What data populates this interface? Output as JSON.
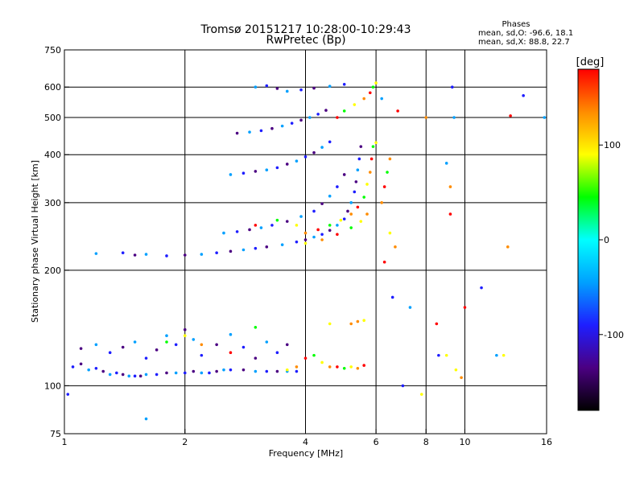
{
  "chart_data": {
    "type": "scatter",
    "title": "Tromsø 20151217 10:28:00-10:29:43",
    "subtitle": "RwPretec (Bp)",
    "stats": {
      "heading": "Phases",
      "line1": "mean, sd,O: -96.6, 18.1",
      "line2": "mean, sd,X:  88.8, 22.7"
    },
    "xlabel": "Frequency [MHz]",
    "ylabel": "Stationary phase Virtual Height [km]",
    "x_scale": "log",
    "y_scale": "log",
    "xlim": [
      1,
      16
    ],
    "ylim": [
      75,
      750
    ],
    "x_ticks": [
      {
        "value": 1,
        "label": "1"
      },
      {
        "value": 2,
        "label": "2"
      },
      {
        "value": 4,
        "label": "4"
      },
      {
        "value": 6,
        "label": "6"
      },
      {
        "value": 8,
        "label": "8"
      },
      {
        "value": 10,
        "label": "10"
      },
      {
        "value": 16,
        "label": "16"
      }
    ],
    "y_ticks": [
      {
        "value": 75,
        "label": "75"
      },
      {
        "value": 100,
        "label": "100"
      },
      {
        "value": 200,
        "label": "200"
      },
      {
        "value": 300,
        "label": "300"
      },
      {
        "value": 400,
        "label": "400"
      },
      {
        "value": 500,
        "label": "500"
      },
      {
        "value": 600,
        "label": "600"
      },
      {
        "value": 750,
        "label": "750"
      }
    ],
    "x_gridlines": [
      2,
      4,
      6,
      8,
      10
    ],
    "y_gridlines": [
      100,
      200,
      300,
      400,
      500,
      600
    ],
    "grid": true,
    "colorbar": {
      "label": "[deg]",
      "range": [
        -180,
        180
      ],
      "ticks": [
        {
          "value": 100,
          "label": "100"
        },
        {
          "value": 0,
          "label": "0"
        },
        {
          "value": -100,
          "label": "-100"
        }
      ],
      "colors": [
        "#000000",
        "#4b0082",
        "#1e1eff",
        "#00a0ff",
        "#00ffff",
        "#00ff00",
        "#ffff00",
        "#ff8c00",
        "#ff0000"
      ]
    },
    "series": [
      {
        "mode": "O",
        "points": [
          [
            1.05,
            112
          ],
          [
            1.1,
            114
          ],
          [
            1.15,
            110
          ],
          [
            1.2,
            111
          ],
          [
            1.25,
            109
          ],
          [
            1.3,
            107
          ],
          [
            1.35,
            108
          ],
          [
            1.4,
            107
          ],
          [
            1.45,
            106
          ],
          [
            1.5,
            106
          ],
          [
            1.55,
            106
          ],
          [
            1.6,
            107
          ],
          [
            1.7,
            107
          ],
          [
            1.8,
            108
          ],
          [
            1.9,
            108
          ],
          [
            2.0,
            108
          ],
          [
            2.1,
            109
          ],
          [
            2.2,
            108
          ],
          [
            2.3,
            108
          ],
          [
            2.4,
            109
          ],
          [
            2.5,
            110
          ],
          [
            2.6,
            110
          ],
          [
            2.8,
            110
          ],
          [
            3.0,
            109
          ],
          [
            3.2,
            109
          ],
          [
            3.4,
            109
          ],
          [
            3.6,
            109
          ],
          [
            3.8,
            109
          ],
          [
            1.1,
            125
          ],
          [
            1.2,
            128
          ],
          [
            1.3,
            122
          ],
          [
            1.4,
            126
          ],
          [
            1.5,
            130
          ],
          [
            1.6,
            118
          ],
          [
            1.7,
            124
          ],
          [
            1.8,
            135
          ],
          [
            1.9,
            128
          ],
          [
            2.0,
            140
          ],
          [
            2.1,
            132
          ],
          [
            2.2,
            120
          ],
          [
            2.4,
            128
          ],
          [
            2.6,
            136
          ],
          [
            2.8,
            126
          ],
          [
            3.0,
            118
          ],
          [
            3.2,
            130
          ],
          [
            3.4,
            122
          ],
          [
            3.6,
            128
          ],
          [
            1.2,
            221
          ],
          [
            1.4,
            222
          ],
          [
            1.5,
            219
          ],
          [
            1.6,
            220
          ],
          [
            1.8,
            218
          ],
          [
            2.0,
            219
          ],
          [
            2.2,
            220
          ],
          [
            2.4,
            222
          ],
          [
            2.6,
            224
          ],
          [
            2.8,
            226
          ],
          [
            3.0,
            228
          ],
          [
            3.2,
            230
          ],
          [
            3.5,
            233
          ],
          [
            3.8,
            237
          ],
          [
            4.0,
            240
          ],
          [
            4.2,
            244
          ],
          [
            4.4,
            248
          ],
          [
            4.6,
            254
          ],
          [
            4.8,
            262
          ],
          [
            5.0,
            272
          ],
          [
            5.1,
            285
          ],
          [
            5.2,
            300
          ],
          [
            5.3,
            320
          ],
          [
            5.35,
            340
          ],
          [
            5.4,
            365
          ],
          [
            5.45,
            390
          ],
          [
            5.5,
            420
          ],
          [
            2.5,
            250
          ],
          [
            2.7,
            252
          ],
          [
            2.9,
            255
          ],
          [
            3.1,
            258
          ],
          [
            3.3,
            262
          ],
          [
            3.6,
            268
          ],
          [
            3.9,
            276
          ],
          [
            4.2,
            285
          ],
          [
            4.4,
            298
          ],
          [
            4.6,
            312
          ],
          [
            4.8,
            330
          ],
          [
            5.0,
            355
          ],
          [
            2.6,
            355
          ],
          [
            2.8,
            358
          ],
          [
            3.0,
            362
          ],
          [
            3.2,
            365
          ],
          [
            3.4,
            370
          ],
          [
            3.6,
            378
          ],
          [
            3.8,
            385
          ],
          [
            4.0,
            395
          ],
          [
            4.2,
            405
          ],
          [
            4.4,
            418
          ],
          [
            4.6,
            432
          ],
          [
            2.7,
            455
          ],
          [
            2.9,
            458
          ],
          [
            3.1,
            462
          ],
          [
            3.3,
            468
          ],
          [
            3.5,
            475
          ],
          [
            3.7,
            483
          ],
          [
            3.9,
            492
          ],
          [
            4.1,
            500
          ],
          [
            4.3,
            510
          ],
          [
            4.5,
            522
          ],
          [
            3.0,
            600
          ],
          [
            3.2,
            605
          ],
          [
            3.4,
            595
          ],
          [
            3.6,
            585
          ],
          [
            3.9,
            590
          ],
          [
            4.2,
            596
          ],
          [
            4.6,
            603
          ],
          [
            5.0,
            610
          ]
        ]
      },
      {
        "mode": "X",
        "points": [
          [
            3.6,
            110
          ],
          [
            3.8,
            112
          ],
          [
            4.0,
            118
          ],
          [
            4.2,
            120
          ],
          [
            4.4,
            115
          ],
          [
            4.6,
            112
          ],
          [
            4.8,
            112
          ],
          [
            5.0,
            111
          ],
          [
            5.2,
            112
          ],
          [
            5.4,
            111
          ],
          [
            5.6,
            113
          ],
          [
            1.8,
            130
          ],
          [
            2.0,
            135
          ],
          [
            2.2,
            128
          ],
          [
            2.6,
            122
          ],
          [
            3.0,
            142
          ],
          [
            4.6,
            145
          ],
          [
            5.2,
            145
          ],
          [
            3.0,
            262
          ],
          [
            3.4,
            270
          ],
          [
            3.8,
            262
          ],
          [
            4.0,
            250
          ],
          [
            4.3,
            255
          ],
          [
            4.6,
            262
          ],
          [
            4.9,
            270
          ],
          [
            5.2,
            280
          ],
          [
            5.4,
            292
          ],
          [
            5.6,
            310
          ],
          [
            5.7,
            335
          ],
          [
            5.8,
            360
          ],
          [
            5.85,
            390
          ],
          [
            5.9,
            420
          ],
          [
            4.0,
            235
          ],
          [
            4.4,
            240
          ],
          [
            4.8,
            248
          ],
          [
            5.2,
            258
          ],
          [
            5.5,
            268
          ],
          [
            5.7,
            280
          ],
          [
            4.8,
            500
          ],
          [
            5.0,
            520
          ],
          [
            5.3,
            540
          ],
          [
            5.6,
            560
          ],
          [
            5.8,
            580
          ],
          [
            5.9,
            600
          ],
          [
            6.0,
            615
          ],
          [
            6.2,
            300
          ],
          [
            6.3,
            330
          ],
          [
            6.4,
            360
          ]
        ]
      },
      {
        "mode": "scattered",
        "points": [
          [
            1.02,
            95
          ],
          [
            1.6,
            82
          ],
          [
            6.5,
            250
          ],
          [
            6.7,
            230
          ],
          [
            6.8,
            520
          ],
          [
            7.0,
            100
          ],
          [
            7.3,
            160
          ],
          [
            7.8,
            95
          ],
          [
            8.0,
            500
          ],
          [
            8.5,
            145
          ],
          [
            8.6,
            120
          ],
          [
            9.0,
            380
          ],
          [
            9.0,
            120
          ],
          [
            9.2,
            330
          ],
          [
            9.2,
            280
          ],
          [
            9.3,
            600
          ],
          [
            9.4,
            500
          ],
          [
            9.5,
            110
          ],
          [
            9.8,
            105
          ],
          [
            10.0,
            160
          ],
          [
            11.0,
            180
          ],
          [
            12.0,
            120
          ],
          [
            12.5,
            120
          ],
          [
            12.8,
            230
          ],
          [
            13.0,
            505
          ],
          [
            14.0,
            570
          ],
          [
            15.8,
            500
          ],
          [
            6.0,
            430
          ],
          [
            6.5,
            390
          ],
          [
            6.3,
            210
          ],
          [
            6.6,
            170
          ],
          [
            6.2,
            560
          ],
          [
            5.6,
            148
          ],
          [
            5.4,
            147
          ]
        ]
      }
    ]
  }
}
